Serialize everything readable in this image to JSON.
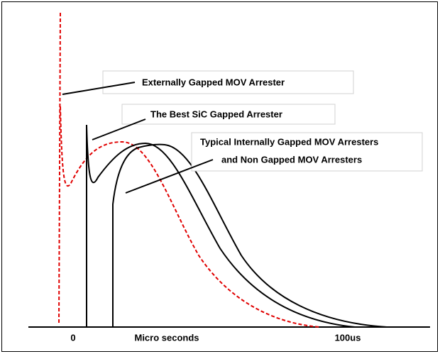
{
  "labels": {
    "external": "Externally Gapped MOV Arrester",
    "sic": "The Best SiC Gapped Arrester",
    "typical": [
      "Typical Internally Gapped MOV Arresters",
      "and Non Gapped MOV Arresters"
    ]
  },
  "axis": {
    "zero": "0",
    "title": "Micro seconds",
    "end": "100us"
  }
}
